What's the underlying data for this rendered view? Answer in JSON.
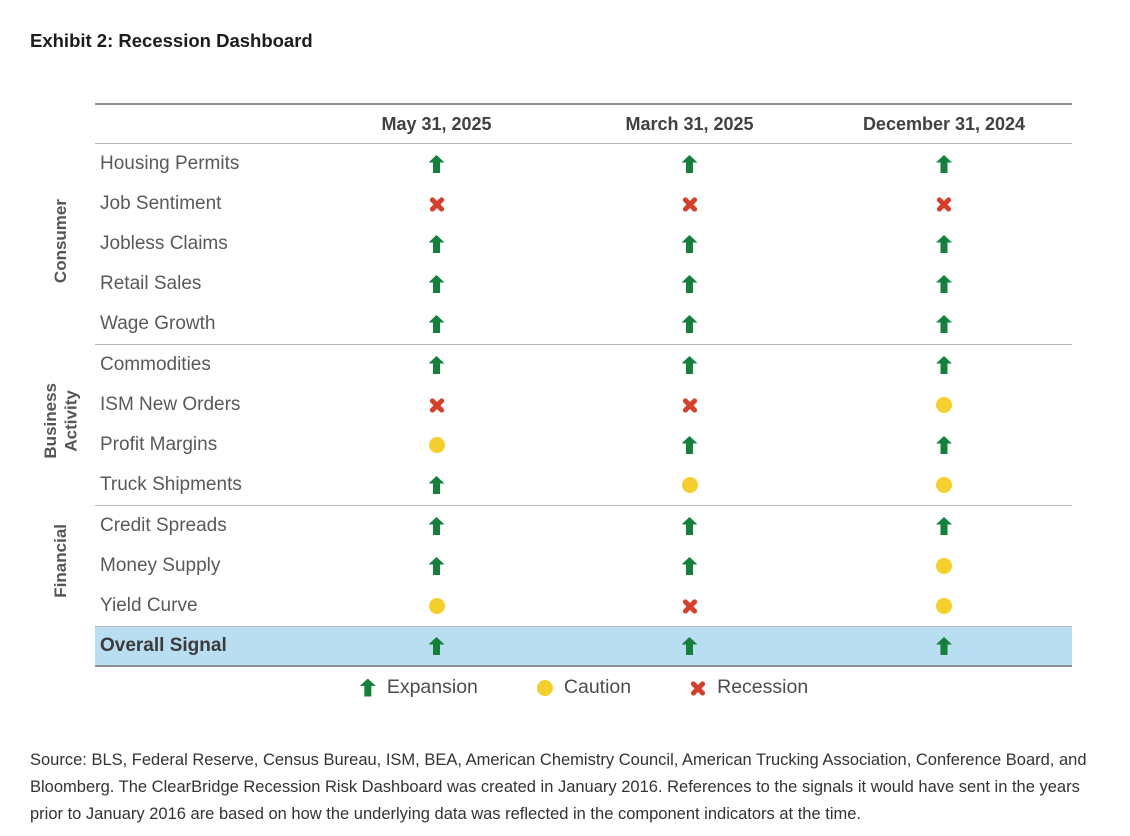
{
  "title": "Exhibit 2: Recession Dashboard",
  "chart_data": {
    "type": "table",
    "title": "Exhibit 2: Recession Dashboard",
    "columns": [
      "May 31, 2025",
      "March 31, 2025",
      "December 31, 2024"
    ],
    "groups": [
      {
        "label": "Consumer"
      },
      {
        "label": "Business\nActivity"
      },
      {
        "label": "Financial"
      }
    ],
    "rows": [
      {
        "group": "Consumer",
        "label": "Housing Permits",
        "signals": [
          "expansion",
          "expansion",
          "expansion"
        ]
      },
      {
        "group": "Consumer",
        "label": "Job Sentiment",
        "signals": [
          "recession",
          "recession",
          "recession"
        ]
      },
      {
        "group": "Consumer",
        "label": "Jobless Claims",
        "signals": [
          "expansion",
          "expansion",
          "expansion"
        ]
      },
      {
        "group": "Consumer",
        "label": "Retail Sales",
        "signals": [
          "expansion",
          "expansion",
          "expansion"
        ]
      },
      {
        "group": "Consumer",
        "label": "Wage Growth",
        "signals": [
          "expansion",
          "expansion",
          "expansion"
        ]
      },
      {
        "group": "Business Activity",
        "label": "Commodities",
        "signals": [
          "expansion",
          "expansion",
          "expansion"
        ]
      },
      {
        "group": "Business Activity",
        "label": "ISM New Orders",
        "signals": [
          "recession",
          "recession",
          "caution"
        ]
      },
      {
        "group": "Business Activity",
        "label": "Profit Margins",
        "signals": [
          "caution",
          "expansion",
          "expansion"
        ]
      },
      {
        "group": "Business Activity",
        "label": "Truck Shipments",
        "signals": [
          "expansion",
          "caution",
          "caution"
        ]
      },
      {
        "group": "Financial",
        "label": "Credit Spreads",
        "signals": [
          "expansion",
          "expansion",
          "expansion"
        ]
      },
      {
        "group": "Financial",
        "label": "Money Supply",
        "signals": [
          "expansion",
          "expansion",
          "caution"
        ]
      },
      {
        "group": "Financial",
        "label": "Yield Curve",
        "signals": [
          "caution",
          "recession",
          "caution"
        ]
      }
    ],
    "overall": {
      "label": "Overall Signal",
      "signals": [
        "expansion",
        "expansion",
        "expansion"
      ]
    },
    "legend": [
      {
        "signal": "expansion",
        "label": "Expansion"
      },
      {
        "signal": "caution",
        "label": "Caution"
      },
      {
        "signal": "recession",
        "label": "Recession"
      }
    ]
  },
  "source": "Source: BLS, Federal Reserve, Census Bureau, ISM, BEA, American Chemistry Council, American Trucking Association, Conference Board, and Bloomberg. The ClearBridge Recession Risk Dashboard was created in January 2016. References to the signals it would have sent in the years prior to January 2016 are based on how the underlying data was reflected in the component indicators at the time.",
  "colors": {
    "expansion": "#15803c",
    "caution": "#f5cf2e",
    "recession": "#d4402c",
    "overall-row-bg": "#b9ddf1"
  }
}
